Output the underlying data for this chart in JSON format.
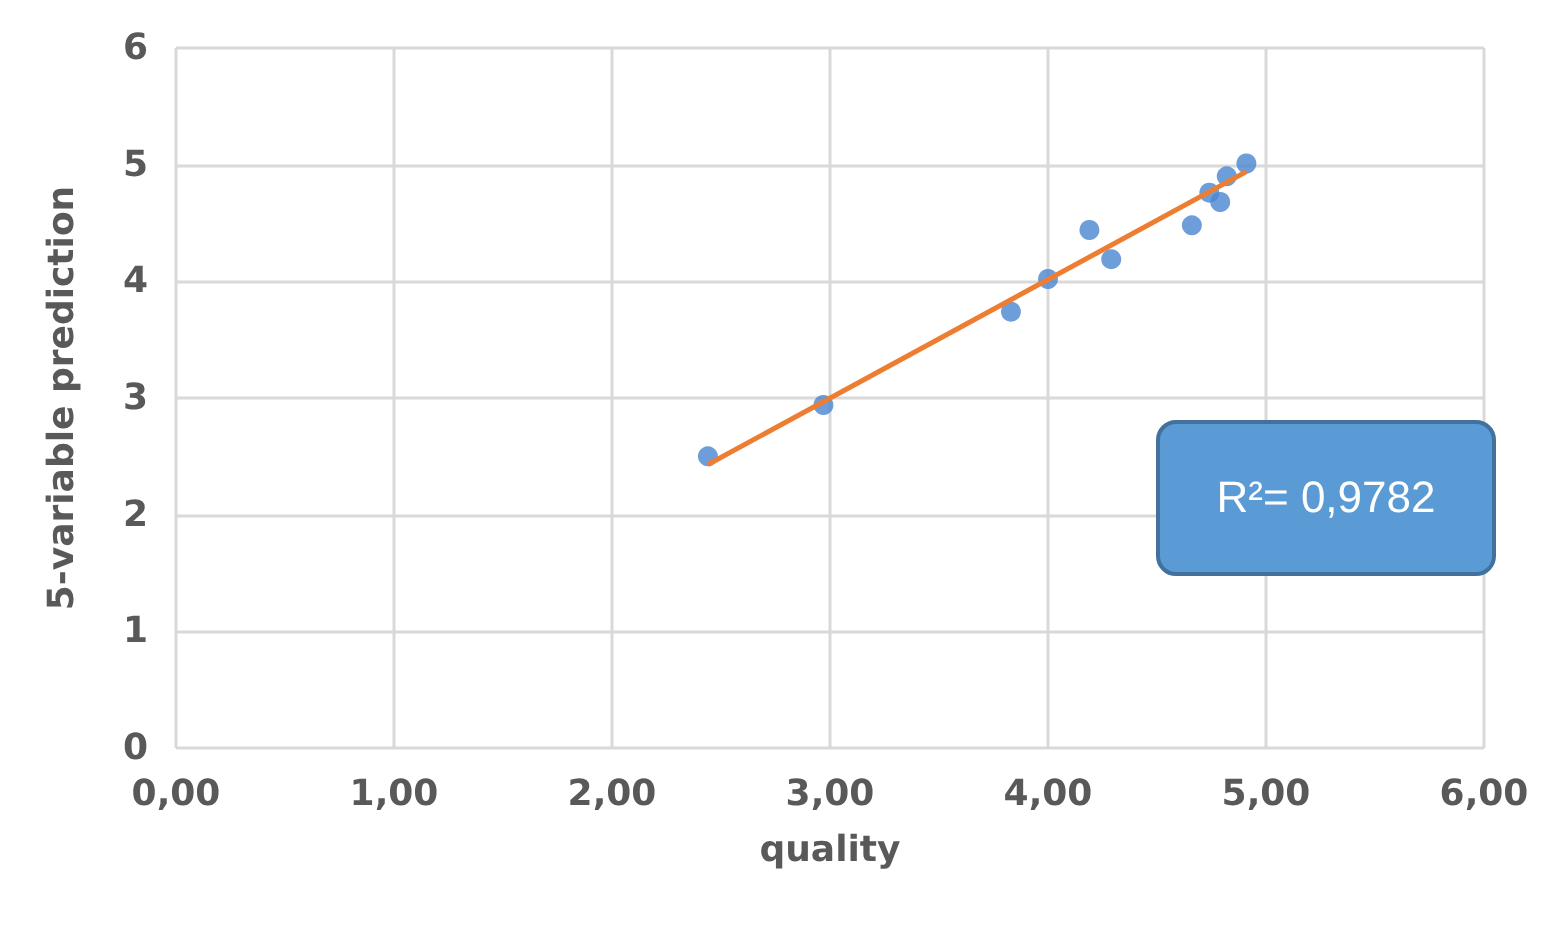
{
  "chart_data": {
    "type": "scatter",
    "xlabel": "quality",
    "ylabel": "5-variable prediction",
    "xlim": [
      0,
      6
    ],
    "ylim": [
      0,
      6
    ],
    "xticks": [
      {
        "value": 0,
        "label": "0,00"
      },
      {
        "value": 1,
        "label": "1,00"
      },
      {
        "value": 2,
        "label": "2,00"
      },
      {
        "value": 3,
        "label": "3,00"
      },
      {
        "value": 4,
        "label": "4,00"
      },
      {
        "value": 5,
        "label": "5,00"
      },
      {
        "value": 6,
        "label": "6,00"
      }
    ],
    "yticks": [
      0,
      1,
      2,
      3,
      4,
      5,
      6
    ],
    "grid": true,
    "marker": "circle",
    "annotations": [
      "R²= 0,9782"
    ],
    "series": [
      {
        "color": "#4a86cf",
        "x": [
          2.44,
          2.97,
          3.83,
          4.0,
          4.19,
          4.29,
          4.66,
          4.74,
          4.79,
          4.82,
          4.91
        ],
        "values": [
          2.5,
          2.94,
          3.74,
          4.02,
          4.44,
          4.19,
          4.48,
          4.76,
          4.68,
          4.9,
          5.01
        ]
      },
      {
        "type": "line",
        "marker": "none",
        "color": "#ed7d31",
        "x": [
          2.44,
          4.91
        ],
        "values": [
          2.43,
          4.94
        ]
      }
    ]
  }
}
